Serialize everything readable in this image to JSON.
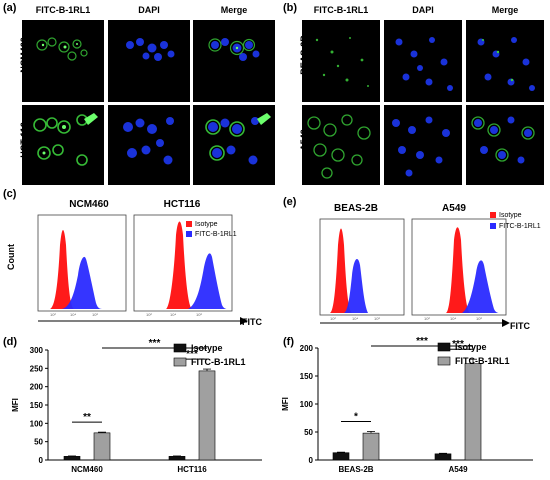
{
  "panels": {
    "a": "(a)",
    "b": "(b)",
    "c": "(c)",
    "d": "(d)",
    "e": "(e)",
    "f": "(f)"
  },
  "micro_a": {
    "col_headers": [
      "FITC-B-1RL1",
      "DAPI",
      "Merge"
    ],
    "row_labels": [
      "NCM460",
      "HCT 116"
    ]
  },
  "micro_b": {
    "col_headers": [
      "FITC-B-1RL1",
      "DAPI",
      "Merge"
    ],
    "row_labels": [
      "BEAS-2B",
      "A549"
    ]
  },
  "colors": {
    "isotype_red": "#ff1a1a",
    "fitc_blue": "#2a2aff",
    "bar_black": "#111111",
    "bar_gray": "#a0a0a0",
    "fitc_green": "#3ccf3c",
    "dapi_blue": "#1f3bff"
  },
  "flow_c": {
    "ylabel": "Count",
    "xlabel": "FITC",
    "titles": [
      "NCM460",
      "HCT116"
    ],
    "legend": [
      "Isotype",
      "FITC-B-1RL1"
    ]
  },
  "flow_e": {
    "xlabel": "FITC",
    "titles": [
      "BEAS-2B",
      "A549"
    ],
    "legend": [
      "Isotype",
      "FITC-B-1RL1"
    ]
  },
  "chart_data": [
    {
      "type": "bar",
      "panel": "(d)",
      "categories": [
        "NCM460",
        "HCT116"
      ],
      "series": [
        {
          "name": "Isotype",
          "values": [
            10,
            10
          ]
        },
        {
          "name": "FITC-B-1RL1",
          "values": [
            74,
            243
          ]
        }
      ],
      "errors": [
        [
          1,
          1
        ],
        [
          2,
          5
        ]
      ],
      "ylabel": "MFI",
      "ylim": [
        0,
        300
      ],
      "yticks": [
        0,
        50,
        100,
        150,
        200,
        250,
        300
      ],
      "significance": [
        {
          "label": "**",
          "pair": "NCM460 Isotype vs FITC-B-1RL1"
        },
        {
          "label": "***",
          "pair": "HCT116 Isotype vs FITC-B-1RL1"
        },
        {
          "label": "***",
          "pair": "NCM460 FITC-B-1RL1 vs HCT116 FITC-B-1RL1"
        }
      ],
      "legend_placement": "top-right"
    },
    {
      "type": "bar",
      "panel": "(f)",
      "categories": [
        "BEAS-2B",
        "A549"
      ],
      "series": [
        {
          "name": "Isotype",
          "values": [
            13,
            11
          ]
        },
        {
          "name": "FITC-B-1RL1",
          "values": [
            48,
            172
          ]
        }
      ],
      "errors": [
        [
          1,
          1
        ],
        [
          3,
          8
        ]
      ],
      "ylabel": "MFI",
      "ylim": [
        0,
        200
      ],
      "yticks": [
        0,
        50,
        100,
        150,
        200
      ],
      "significance": [
        {
          "label": "*",
          "pair": "BEAS-2B Isotype vs FITC-B-1RL1"
        },
        {
          "label": "***",
          "pair": "A549 Isotype vs FITC-B-1RL1"
        },
        {
          "label": "***",
          "pair": "BEAS-2B FITC-B-1RL1 vs A549 FITC-B-1RL1"
        }
      ],
      "legend_placement": "top-right"
    }
  ]
}
